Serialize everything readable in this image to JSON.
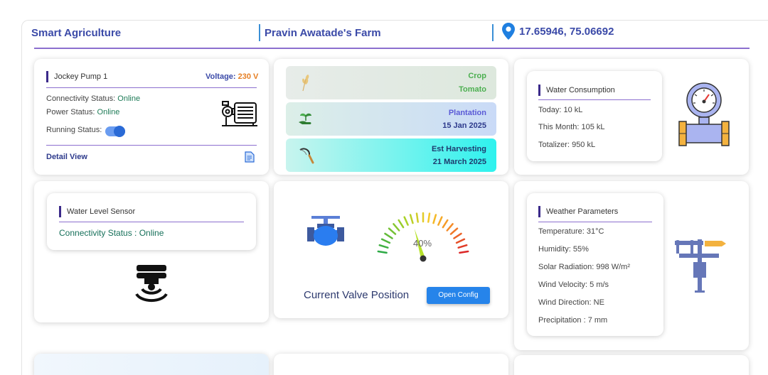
{
  "header": {
    "title": "Smart Agriculture",
    "farm": "Pravin Awatade's Farm",
    "coordinates": "17.65946, 75.06692"
  },
  "pump": {
    "title": "Jockey Pump 1",
    "voltage_label": "Voltage:",
    "voltage_value": "230 V",
    "connectivity_label": "Connectivity Status:",
    "connectivity_value": "Online",
    "power_label": "Power Status:",
    "power_value": "Online",
    "running_label": "Running Status:",
    "running_on": true,
    "detail_link": "Detail View"
  },
  "crop": {
    "crop_label": "Crop",
    "crop_value": "Tomato",
    "plantation_label": "Plantation",
    "plantation_value": "15 Jan 2025",
    "harvest_label": "Est Harvesting",
    "harvest_value": "21 March 2025"
  },
  "water": {
    "title": "Water Consumption",
    "today": "Today: 10 kL",
    "month": "This Month: 105 kL",
    "totalizer": "Totalizer: 950 kL"
  },
  "level": {
    "title": "Water Level Sensor",
    "status": "Connectivity Status : Online"
  },
  "valve": {
    "gauge_text": "40%",
    "gauge_value": 40,
    "label": "Current Valve Position",
    "button": "Open Config"
  },
  "weather": {
    "title": "Weather Parameters",
    "items": [
      "Temperature: 31°C",
      "Humidity: 55%",
      "Solar Radiation: 998 W/m²",
      "Wind Velocity: 5 m/s",
      "Wind Direction: NE",
      "Precipitation : 7 mm"
    ]
  },
  "colors": {
    "accent": "#3b4aa8",
    "rule": "#8c6fcf",
    "online": "#1e7b57",
    "voltage": "#e67e22",
    "button": "#2684ea"
  }
}
